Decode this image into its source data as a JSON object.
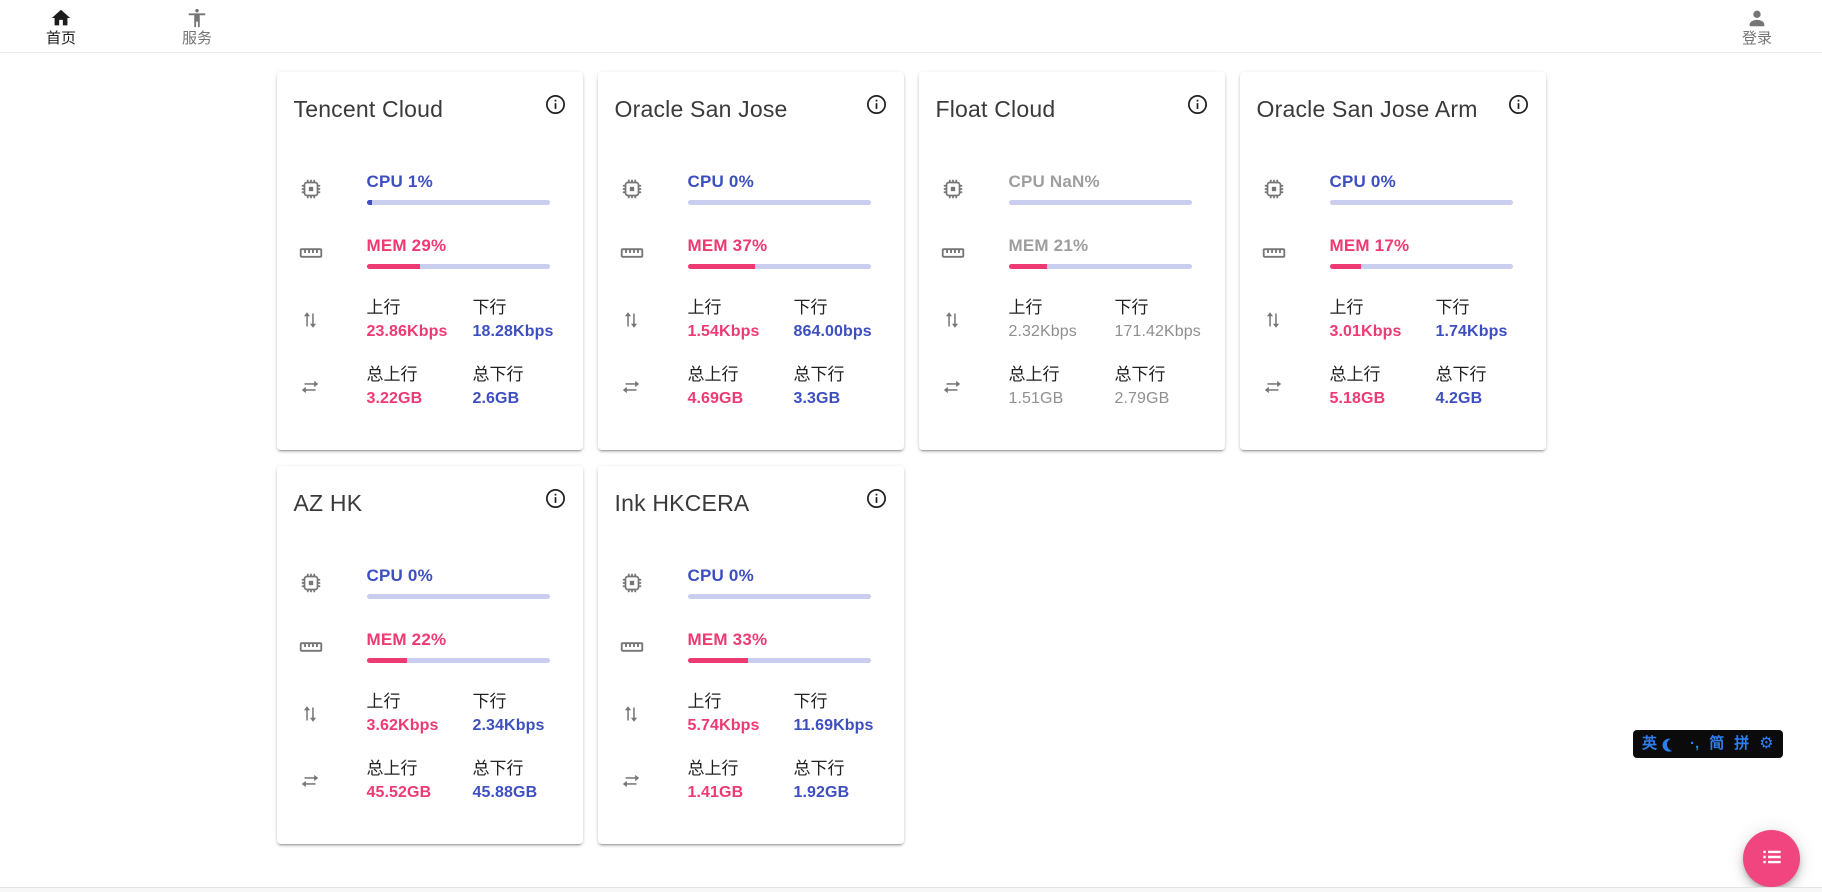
{
  "navbar": {
    "home": {
      "label": "首页"
    },
    "services": {
      "label": "服务"
    },
    "login": {
      "label": "登录"
    }
  },
  "shared": {
    "up_label": "上行",
    "down_label": "下行",
    "total_up_label": "总上行",
    "total_down_label": "总下行"
  },
  "servers": [
    {
      "name": "Tencent Cloud",
      "cpu_label": "CPU 1%",
      "cpu_percent": 1,
      "mem_label": "MEM 29%",
      "mem_percent": 29,
      "up": "23.86Kbps",
      "down": "18.28Kbps",
      "total_up": "3.22GB",
      "total_down": "2.6GB",
      "online": true
    },
    {
      "name": "Oracle San Jose",
      "cpu_label": "CPU 0%",
      "cpu_percent": 0,
      "mem_label": "MEM 37%",
      "mem_percent": 37,
      "up": "1.54Kbps",
      "down": "864.00bps",
      "total_up": "4.69GB",
      "total_down": "3.3GB",
      "online": true
    },
    {
      "name": "Float Cloud",
      "cpu_label": "CPU NaN%",
      "cpu_percent": 0,
      "mem_label": "MEM 21%",
      "mem_percent": 21,
      "up": "2.32Kbps",
      "down": "171.42Kbps",
      "total_up": "1.51GB",
      "total_down": "2.79GB",
      "online": false
    },
    {
      "name": "Oracle San Jose Arm",
      "cpu_label": "CPU 0%",
      "cpu_percent": 0,
      "mem_label": "MEM 17%",
      "mem_percent": 17,
      "up": "3.01Kbps",
      "down": "1.74Kbps",
      "total_up": "5.18GB",
      "total_down": "4.2GB",
      "online": true
    },
    {
      "name": "AZ HK",
      "cpu_label": "CPU 0%",
      "cpu_percent": 0,
      "mem_label": "MEM 22%",
      "mem_percent": 22,
      "up": "3.62Kbps",
      "down": "2.34Kbps",
      "total_up": "45.52GB",
      "total_down": "45.88GB",
      "online": true
    },
    {
      "name": "Ink HKCERA",
      "cpu_label": "CPU 0%",
      "cpu_percent": 0,
      "mem_label": "MEM 33%",
      "mem_percent": 33,
      "up": "5.74Kbps",
      "down": "11.69Kbps",
      "total_up": "1.41GB",
      "total_down": "1.92GB",
      "online": true
    }
  ],
  "ime": {
    "english_key": "英",
    "punct_icon": "·,",
    "simplified_key": "简",
    "pinyin_key": "拼",
    "gear_icon": "⚙"
  },
  "colors": {
    "accent_pink": "#ee3a72",
    "accent_indigo": "#3d4fc0",
    "bar_track": "#c9cdee",
    "offline_gray": "#8f8f8f",
    "fab_pink": "#f0457f",
    "ime_blue": "#2d7ff0"
  }
}
